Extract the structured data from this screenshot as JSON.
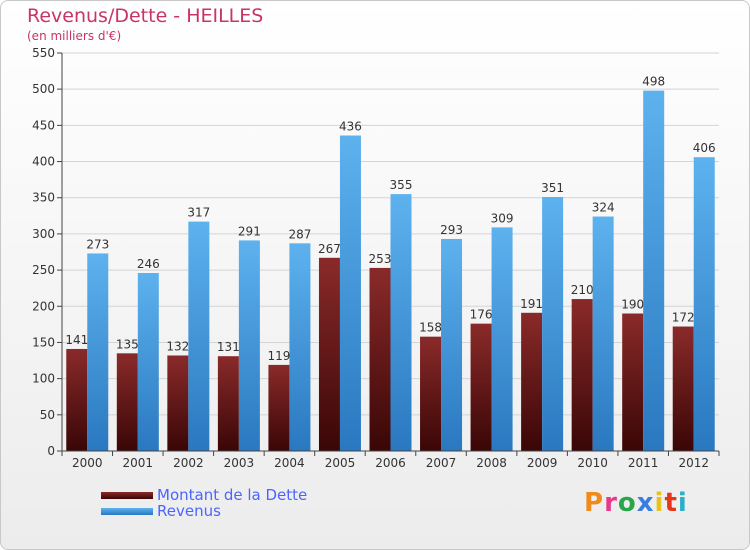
{
  "chart_data": {
    "type": "bar",
    "title": "Revenus/Dette - HEILLES",
    "subtitle": "(en milliers d'€)",
    "categories": [
      "2000",
      "2001",
      "2002",
      "2003",
      "2004",
      "2005",
      "2006",
      "2007",
      "2008",
      "2009",
      "2010",
      "2011",
      "2012"
    ],
    "series": [
      {
        "name": "Montant de la Dette",
        "color": "#7a1a1a",
        "values": [
          141,
          135,
          132,
          131,
          119,
          267,
          253,
          158,
          176,
          191,
          210,
          190,
          172
        ]
      },
      {
        "name": "Revenus",
        "color": "#4da6e8",
        "values": [
          273,
          246,
          317,
          291,
          287,
          436,
          355,
          293,
          309,
          351,
          324,
          498,
          406
        ]
      }
    ],
    "ylim": [
      0,
      550
    ],
    "yticks": [
      0,
      50,
      100,
      150,
      200,
      250,
      300,
      350,
      400,
      450,
      500,
      550
    ],
    "grid": true,
    "legend": "bottom-left"
  },
  "brand": {
    "text": "Proxiti"
  }
}
